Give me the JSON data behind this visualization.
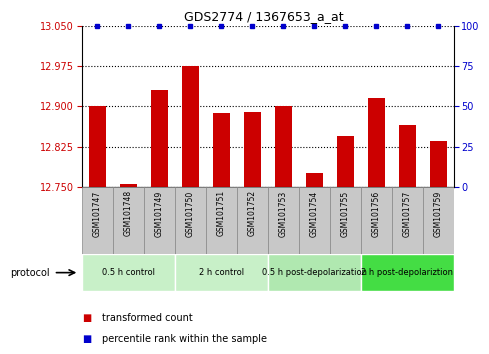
{
  "title": "GDS2774 / 1367653_a_at",
  "samples": [
    "GSM101747",
    "GSM101748",
    "GSM101749",
    "GSM101750",
    "GSM101751",
    "GSM101752",
    "GSM101753",
    "GSM101754",
    "GSM101755",
    "GSM101756",
    "GSM101757",
    "GSM101759"
  ],
  "bar_values": [
    12.9,
    12.755,
    12.93,
    12.975,
    12.887,
    12.889,
    12.9,
    12.775,
    12.845,
    12.915,
    12.865,
    12.835
  ],
  "percentile_values": [
    100,
    100,
    100,
    100,
    100,
    100,
    100,
    100,
    100,
    100,
    100,
    100
  ],
  "ylim_left": [
    12.75,
    13.05
  ],
  "ylim_right": [
    0,
    100
  ],
  "yticks_left": [
    12.75,
    12.825,
    12.9,
    12.975,
    13.05
  ],
  "yticks_right": [
    0,
    25,
    50,
    75,
    100
  ],
  "bar_color": "#CC0000",
  "percentile_color": "#0000CC",
  "groups": [
    {
      "label": "0.5 h control",
      "start": 0,
      "end": 3,
      "color": "#c8f0c8"
    },
    {
      "label": "2 h control",
      "start": 3,
      "end": 6,
      "color": "#c8f0c8"
    },
    {
      "label": "0.5 h post-depolarization",
      "start": 6,
      "end": 9,
      "color": "#b0e8b0"
    },
    {
      "label": "2 h post-depolariztion",
      "start": 9,
      "end": 12,
      "color": "#44dd44"
    }
  ],
  "protocol_label": "protocol",
  "legend_items": [
    {
      "label": "transformed count",
      "color": "#CC0000"
    },
    {
      "label": "percentile rank within the sample",
      "color": "#0000CC"
    }
  ],
  "bg_color": "#FFFFFF",
  "grid_color": "#000000",
  "tick_color_left": "#CC0000",
  "tick_color_right": "#0000CC",
  "sample_bg_color": "#C8C8C8",
  "sample_border_color": "#888888"
}
